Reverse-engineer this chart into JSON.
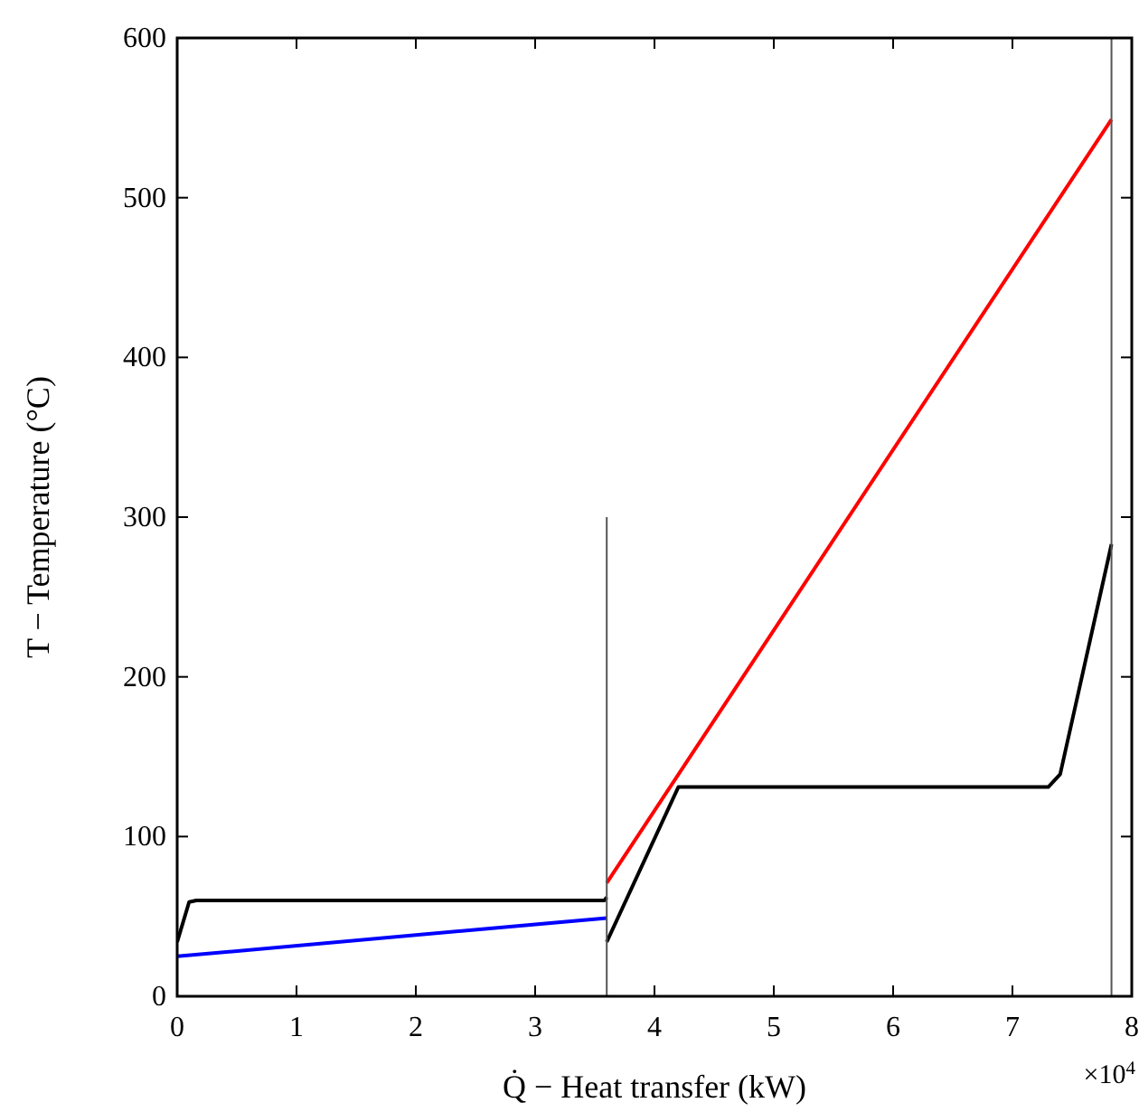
{
  "chart_data": {
    "type": "line",
    "xlabel": "Q̇ − Heat transfer (kW)",
    "ylabel": "T − Temperature (°C)",
    "xlim": [
      0,
      8
    ],
    "ylim": [
      0,
      600
    ],
    "xticks": [
      0,
      1,
      2,
      3,
      4,
      5,
      6,
      7,
      8
    ],
    "yticks": [
      0,
      100,
      200,
      300,
      400,
      500,
      600
    ],
    "annotations": [
      "×10$^{4}$"
    ],
    "grid": false,
    "series": [
      {
        "color": "#0000ff",
        "x": [
          0,
          3.6
        ],
        "values": [
          25,
          49
        ]
      },
      {
        "color": "#000000",
        "x": [
          0,
          0.1,
          0.16,
          3.58,
          3.6
        ],
        "values": [
          34,
          59,
          60,
          60,
          62
        ]
      },
      {
        "color": "#ff0000",
        "x": [
          3.6,
          7.83
        ],
        "values": [
          71,
          549
        ]
      },
      {
        "color": "#000000",
        "x": [
          3.6,
          4.2,
          7.3,
          7.4,
          7.83
        ],
        "values": [
          34,
          131,
          131,
          139,
          283
        ]
      },
      {
        "color": "#555555",
        "x": [
          3.6,
          3.6
        ],
        "values": [
          0,
          300
        ]
      },
      {
        "color": "#555555",
        "x": [
          7.83,
          7.83
        ],
        "values": [
          0,
          600
        ]
      }
    ]
  }
}
